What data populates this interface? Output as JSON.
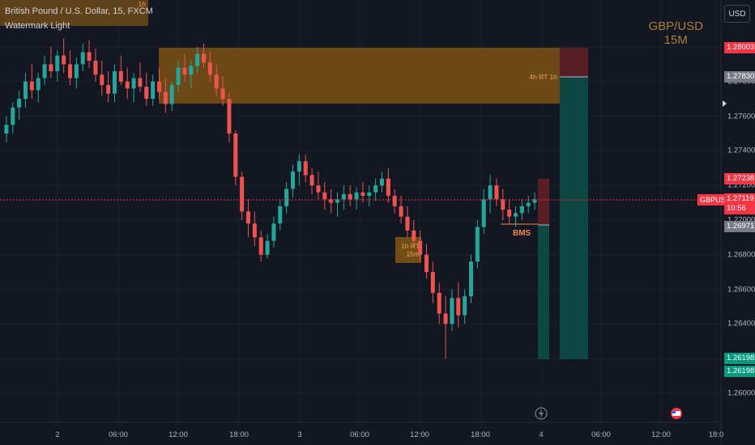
{
  "header": {
    "title": "British Pound / U.S. Dollar, 15, FXCM",
    "indicator": "Watermark Light",
    "currency_button": "USD",
    "htf_label": "1h"
  },
  "watermark": {
    "line1": "GBP/USD",
    "line2": "15M"
  },
  "price_axis": {
    "ticks": [
      "1.28000",
      "1.27800",
      "1.27600",
      "1.27400",
      "1.27200",
      "1.27000",
      "1.26800",
      "1.26600",
      "1.26400",
      "1.26200",
      "1.26000"
    ],
    "labels": {
      "top_red": "1.28003",
      "target_gray": "1.27830",
      "upper_red": "1.27238",
      "symbol": "GBPUSD",
      "last_price": "1.27119",
      "countdown": "10:56",
      "lower_gray": "1.26971",
      "green_1": "1.26198",
      "green_2": "1.26198"
    }
  },
  "time_axis": [
    "2",
    "06:00",
    "12:00",
    "18:00",
    "3",
    "06:00",
    "12:00",
    "18:00",
    "4",
    "06:00",
    "12:00",
    "18:0"
  ],
  "zones": {
    "rt_4h": "4h RT 1h",
    "rt_1h_line1": "1h RT",
    "rt_1h_line2": "15m",
    "bms": "BMS"
  },
  "colors": {
    "bull": "#26a69a",
    "bear": "#ef5350",
    "zone": "#8a5a12",
    "target": "#0e4a45",
    "stop": "#5c1f27"
  },
  "chart_data": {
    "type": "candlestick",
    "series": [
      {
        "ohlc": [
          [
            1.275,
            1.276,
            1.2745,
            1.2755
          ],
          [
            1.2755,
            1.2768,
            1.275,
            1.2765
          ],
          [
            1.2765,
            1.2775,
            1.2758,
            1.277
          ],
          [
            1.277,
            1.2785,
            1.2765,
            1.278
          ],
          [
            1.278,
            1.279,
            1.277,
            1.2775
          ],
          [
            1.2775,
            1.2785,
            1.2768,
            1.2782
          ],
          [
            1.2782,
            1.2795,
            1.2778,
            1.279
          ],
          [
            1.279,
            1.28,
            1.2782,
            1.2786
          ],
          [
            1.2786,
            1.2798,
            1.278,
            1.2795
          ],
          [
            1.2795,
            1.2805,
            1.2785,
            1.279
          ],
          [
            1.279,
            1.2798,
            1.2778,
            1.2782
          ],
          [
            1.2782,
            1.2794,
            1.2776,
            1.279
          ],
          [
            1.279,
            1.2802,
            1.2786,
            1.2797
          ],
          [
            1.2797,
            1.2804,
            1.2788,
            1.2792
          ],
          [
            1.2792,
            1.2799,
            1.278,
            1.2784
          ],
          [
            1.2784,
            1.2792,
            1.2772,
            1.2778
          ],
          [
            1.2778,
            1.2786,
            1.2768,
            1.2773
          ],
          [
            1.2773,
            1.279,
            1.2768,
            1.2786
          ],
          [
            1.2786,
            1.2795,
            1.2778,
            1.278
          ],
          [
            1.278,
            1.2788,
            1.277,
            1.2776
          ],
          [
            1.2776,
            1.2785,
            1.2768,
            1.2782
          ],
          [
            1.2782,
            1.2791,
            1.2774,
            1.2777
          ],
          [
            1.2777,
            1.2785,
            1.2766,
            1.277
          ],
          [
            1.277,
            1.2784,
            1.2766,
            1.278
          ],
          [
            1.278,
            1.2788,
            1.277,
            1.2774
          ],
          [
            1.2774,
            1.2782,
            1.2762,
            1.2767
          ],
          [
            1.2767,
            1.278,
            1.2763,
            1.2778
          ],
          [
            1.2778,
            1.2792,
            1.2774,
            1.2788
          ],
          [
            1.2788,
            1.2796,
            1.278,
            1.2784
          ],
          [
            1.2784,
            1.2792,
            1.2776,
            1.2789
          ],
          [
            1.2789,
            1.28,
            1.2785,
            1.2796
          ],
          [
            1.2796,
            1.2802,
            1.2788,
            1.2791
          ],
          [
            1.2791,
            1.2797,
            1.278,
            1.2784
          ],
          [
            1.2784,
            1.279,
            1.2772,
            1.2776
          ],
          [
            1.2776,
            1.2783,
            1.2766,
            1.277
          ],
          [
            1.277,
            1.2774,
            1.2745,
            1.275
          ],
          [
            1.275,
            1.2752,
            1.272,
            1.2725
          ],
          [
            1.2725,
            1.2728,
            1.27,
            1.2705
          ],
          [
            1.2705,
            1.2712,
            1.269,
            1.2698
          ],
          [
            1.2698,
            1.2705,
            1.2685,
            1.269
          ],
          [
            1.269,
            1.2694,
            1.2676,
            1.268
          ],
          [
            1.268,
            1.2692,
            1.2678,
            1.2688
          ],
          [
            1.2688,
            1.2702,
            1.2684,
            1.2698
          ],
          [
            1.2698,
            1.2712,
            1.2694,
            1.2708
          ],
          [
            1.2708,
            1.2722,
            1.2704,
            1.2718
          ],
          [
            1.2718,
            1.2732,
            1.2713,
            1.2728
          ],
          [
            1.2728,
            1.2738,
            1.272,
            1.2734
          ],
          [
            1.2734,
            1.2738,
            1.2722,
            1.2726
          ],
          [
            1.2726,
            1.273,
            1.2715,
            1.272
          ],
          [
            1.272,
            1.2728,
            1.2712,
            1.2716
          ],
          [
            1.2716,
            1.2722,
            1.2706,
            1.2712
          ],
          [
            1.2712,
            1.2718,
            1.2704,
            1.271
          ],
          [
            1.271,
            1.2716,
            1.2702,
            1.2712
          ],
          [
            1.2712,
            1.272,
            1.2706,
            1.2715
          ],
          [
            1.2715,
            1.272,
            1.2708,
            1.2712
          ],
          [
            1.2712,
            1.2719,
            1.2706,
            1.2716
          ],
          [
            1.2716,
            1.2722,
            1.271,
            1.2714
          ],
          [
            1.2714,
            1.272,
            1.2708,
            1.2716
          ],
          [
            1.2716,
            1.2724,
            1.2711,
            1.272
          ],
          [
            1.272,
            1.2728,
            1.2716,
            1.2724
          ],
          [
            1.2724,
            1.273,
            1.271,
            1.2714
          ],
          [
            1.2714,
            1.2718,
            1.2704,
            1.2708
          ],
          [
            1.2708,
            1.2714,
            1.2698,
            1.2702
          ],
          [
            1.2702,
            1.2708,
            1.269,
            1.2694
          ],
          [
            1.2694,
            1.27,
            1.2684,
            1.2688
          ],
          [
            1.2688,
            1.2694,
            1.2676,
            1.268
          ],
          [
            1.268,
            1.2686,
            1.2666,
            1.267
          ],
          [
            1.267,
            1.2676,
            1.2652,
            1.2658
          ],
          [
            1.2658,
            1.2664,
            1.264,
            1.2646
          ],
          [
            1.2646,
            1.2656,
            1.262,
            1.264
          ],
          [
            1.264,
            1.266,
            1.2636,
            1.2655
          ],
          [
            1.2655,
            1.2664,
            1.2638,
            1.2645
          ],
          [
            1.2645,
            1.266,
            1.264,
            1.2656
          ],
          [
            1.2656,
            1.268,
            1.2652,
            1.2676
          ],
          [
            1.2676,
            1.27,
            1.2672,
            1.2696
          ],
          [
            1.2696,
            1.2718,
            1.2692,
            1.2712
          ],
          [
            1.2712,
            1.2726,
            1.2704,
            1.272
          ],
          [
            1.272,
            1.2724,
            1.2708,
            1.2712
          ],
          [
            1.2712,
            1.2718,
            1.27,
            1.2706
          ],
          [
            1.2706,
            1.2712,
            1.2698,
            1.2702
          ],
          [
            1.2702,
            1.2708,
            1.2696,
            1.2704
          ],
          [
            1.2704,
            1.2712,
            1.27,
            1.2708
          ],
          [
            1.2708,
            1.2714,
            1.2704,
            1.271
          ],
          [
            1.271,
            1.2716,
            1.2706,
            1.2712
          ]
        ]
      }
    ],
    "xlabel": "",
    "ylabel": "",
    "ylim": [
      1.259,
      1.2825
    ],
    "grid": true
  }
}
